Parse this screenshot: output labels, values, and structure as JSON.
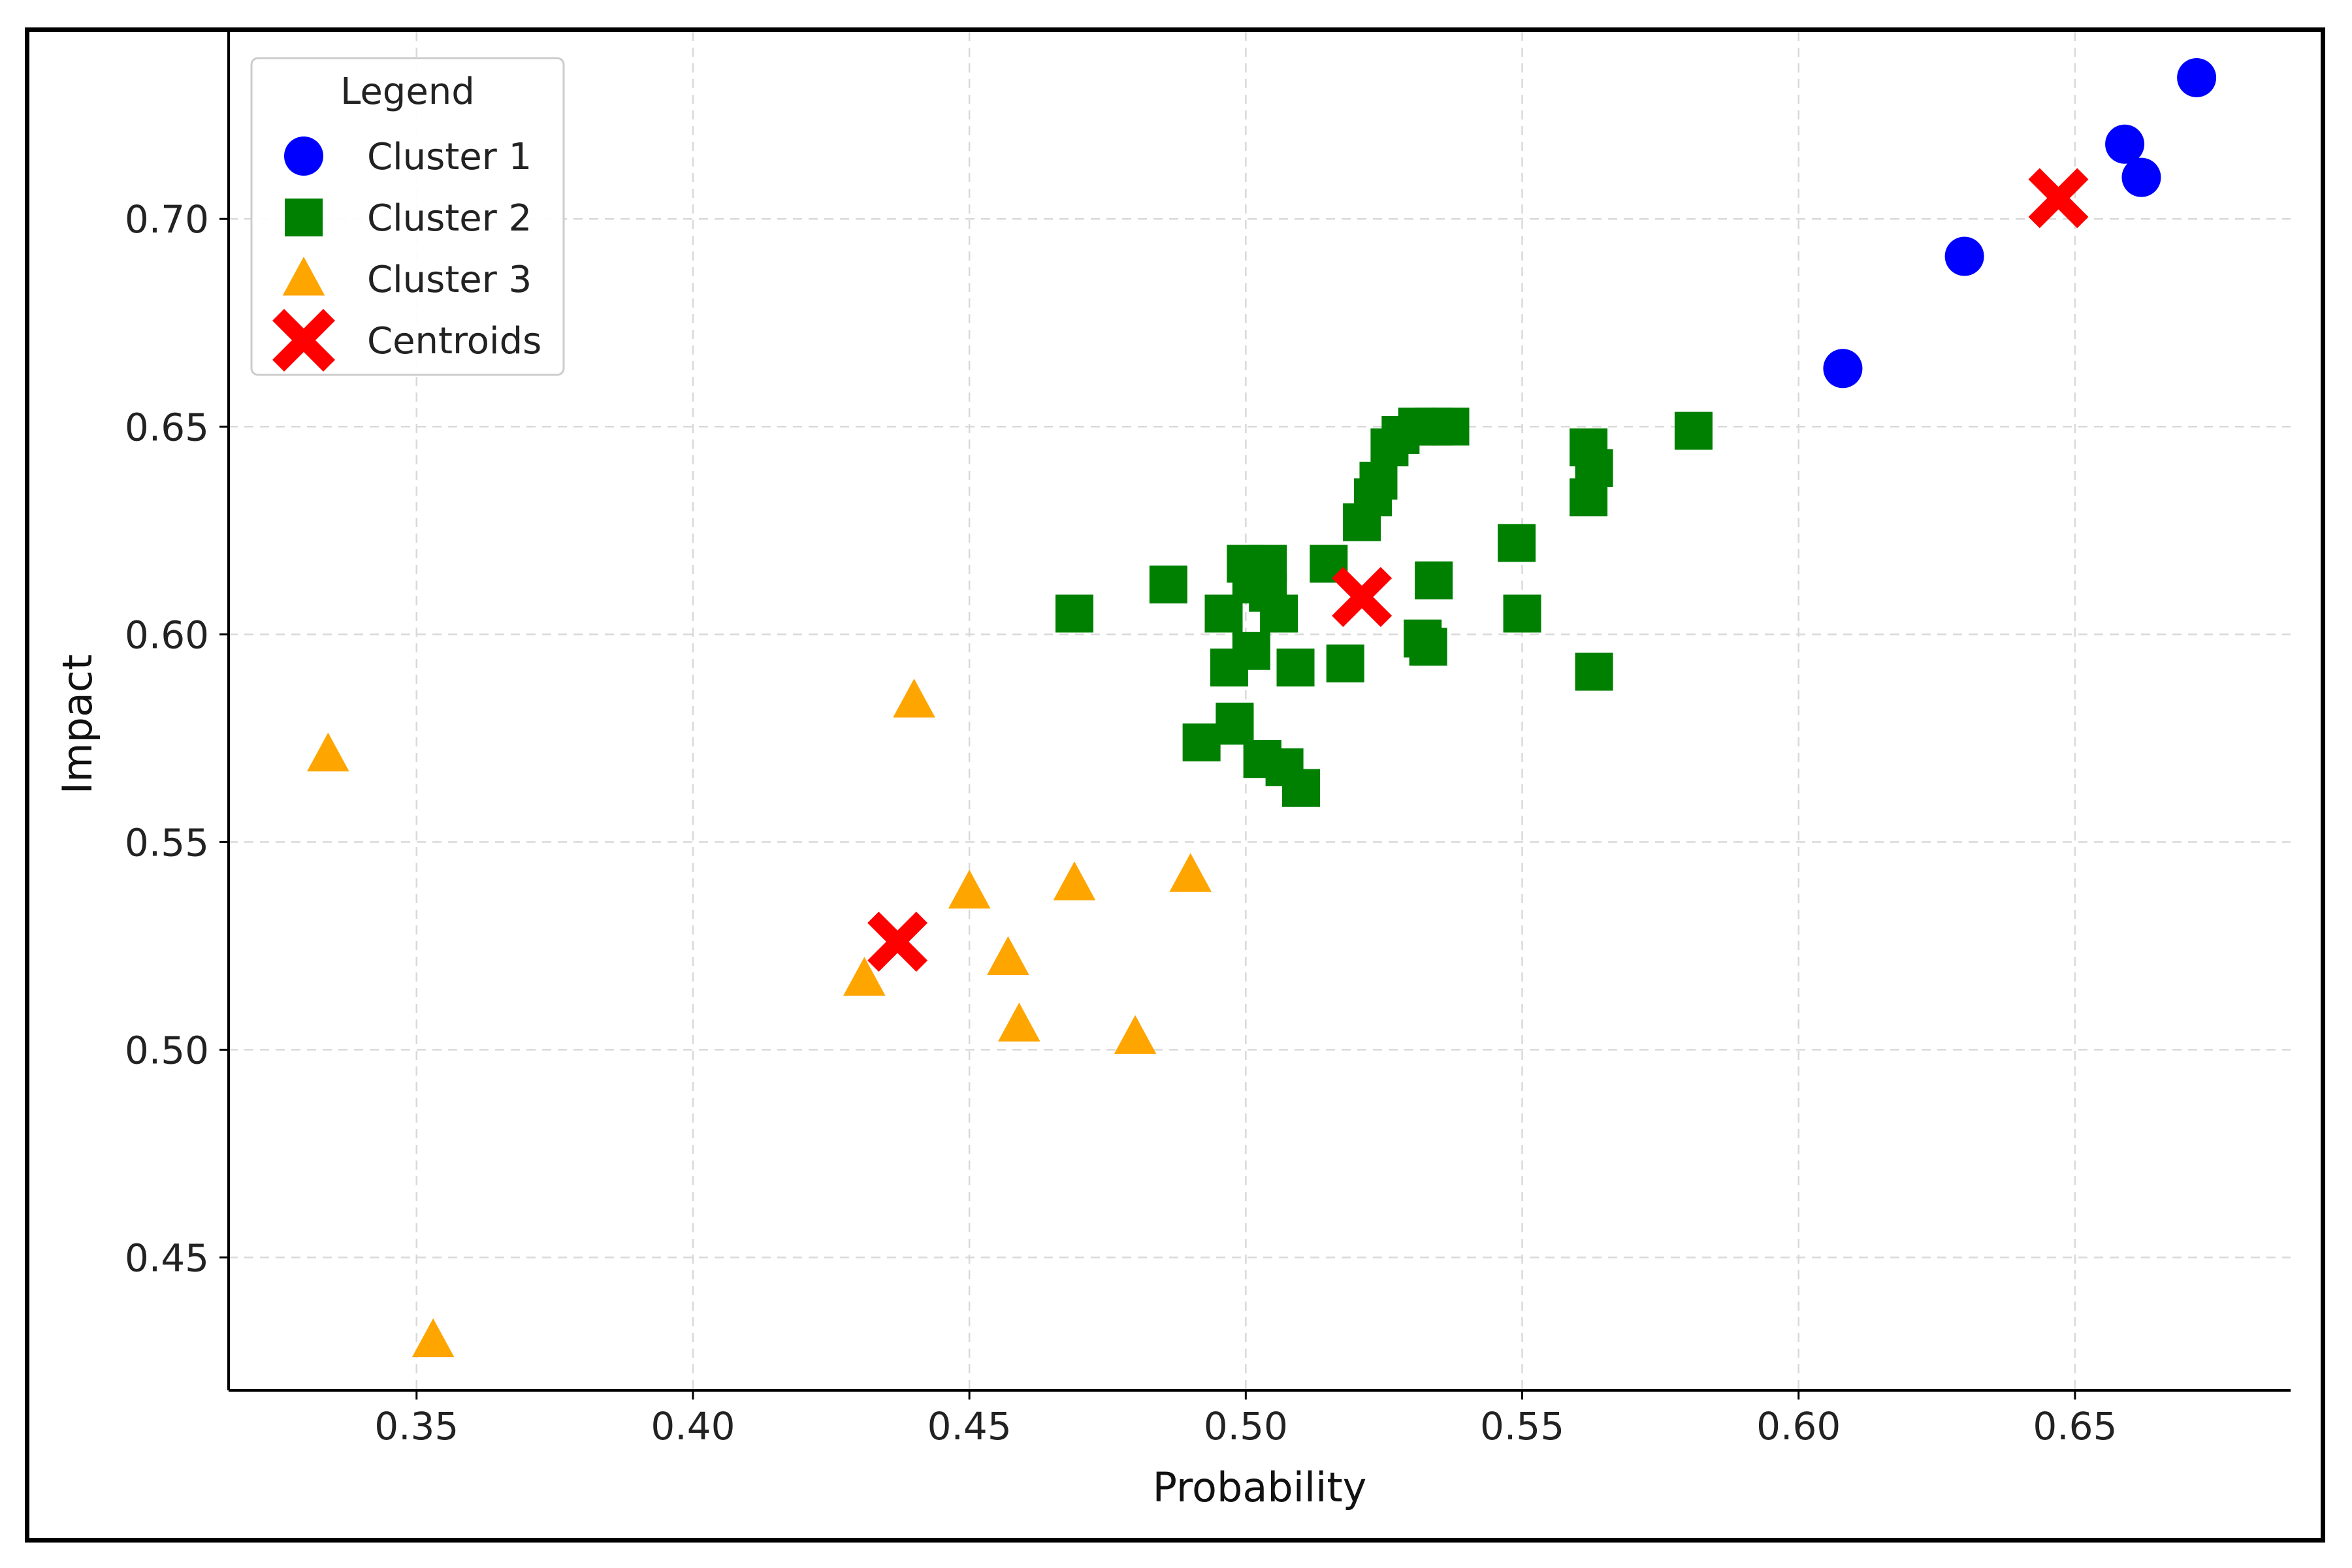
{
  "chart_data": {
    "type": "scatter",
    "title": "",
    "xlabel": "Probability",
    "ylabel": "Impact",
    "xlim": [
      0.316,
      0.689
    ],
    "ylim": [
      0.418,
      0.745
    ],
    "xticks": [
      "0.35",
      "0.40",
      "0.45",
      "0.50",
      "0.55",
      "0.60",
      "0.65"
    ],
    "yticks": [
      "0.45",
      "0.50",
      "0.55",
      "0.60",
      "0.65",
      "0.70"
    ],
    "grid": true,
    "legend": {
      "title": "Legend",
      "position": "top-left",
      "entries": [
        "Cluster 1",
        "Cluster 2",
        "Cluster 3",
        "Centroids"
      ]
    },
    "series": [
      {
        "name": "Cluster 1",
        "marker": "circle",
        "color": "#0000ff",
        "x": [
          0.608,
          0.63,
          0.659,
          0.662,
          0.672
        ],
        "y": [
          0.664,
          0.691,
          0.718,
          0.71,
          0.734
        ]
      },
      {
        "name": "Cluster 2",
        "marker": "square",
        "color": "#008000",
        "x": [
          0.469,
          0.486,
          0.496,
          0.497,
          0.498,
          0.5,
          0.501,
          0.503,
          0.504,
          0.506,
          0.509,
          0.515,
          0.518,
          0.521,
          0.523,
          0.524,
          0.526,
          0.528,
          0.531,
          0.534,
          0.537,
          0.532,
          0.533,
          0.534,
          0.549,
          0.55,
          0.562,
          0.563,
          0.562,
          0.563,
          0.581,
          0.492,
          0.498,
          0.503,
          0.507,
          0.51,
          0.501,
          0.504
        ],
        "y": [
          0.605,
          0.612,
          0.605,
          0.592,
          0.578,
          0.617,
          0.596,
          0.57,
          0.617,
          0.605,
          0.592,
          0.617,
          0.593,
          0.627,
          0.633,
          0.637,
          0.645,
          0.648,
          0.65,
          0.65,
          0.65,
          0.599,
          0.597,
          0.613,
          0.622,
          0.605,
          0.645,
          0.64,
          0.633,
          0.591,
          0.649,
          0.574,
          0.579,
          0.57,
          0.568,
          0.563,
          0.612,
          0.61
        ]
      },
      {
        "name": "Cluster 3",
        "marker": "triangle",
        "color": "#ffa500",
        "x": [
          0.334,
          0.353,
          0.431,
          0.44,
          0.45,
          0.457,
          0.459,
          0.469,
          0.48,
          0.49
        ],
        "y": [
          0.571,
          0.43,
          0.517,
          0.584,
          0.538,
          0.522,
          0.506,
          0.54,
          0.503,
          0.542
        ]
      },
      {
        "name": "Centroids",
        "marker": "x",
        "color": "#ff0000",
        "x": [
          0.647,
          0.521,
          0.437
        ],
        "y": [
          0.705,
          0.609,
          0.526
        ]
      }
    ]
  }
}
